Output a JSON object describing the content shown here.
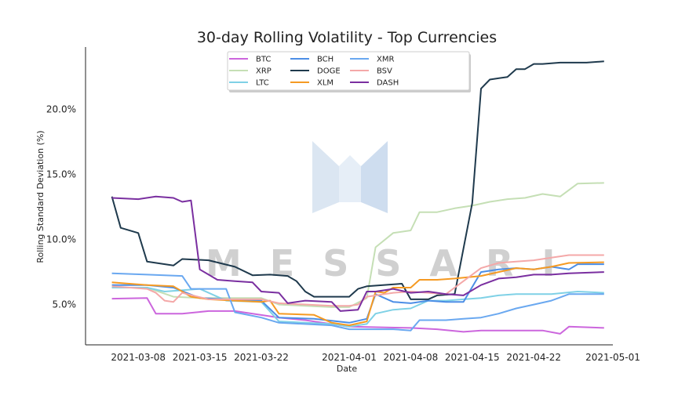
{
  "watermark_text": "MESSARI",
  "chart_data": {
    "type": "line",
    "title": "30-day Rolling Volatility - Top Currencies",
    "xlabel": "Date",
    "ylabel": "Rolling Standard Deviation (%)",
    "xlim": [
      "2021-03-02",
      "2021-05-01"
    ],
    "ylim": [
      1.9,
      24.8
    ],
    "x_ticks": [
      "2021-03-08",
      "2021-03-15",
      "2021-03-22",
      "2021-04-01",
      "2021-04-08",
      "2021-04-15",
      "2021-04-22",
      "2021-05-01"
    ],
    "y_ticks": [
      5.0,
      10.0,
      15.0,
      20.0
    ],
    "y_tick_labels": [
      "5.0%",
      "10.0%",
      "15.0%",
      "20.0%"
    ],
    "grid": false,
    "legend_position": "top-center",
    "series": [
      {
        "name": "BTC",
        "color": "#cc66dd",
        "points": [
          [
            "2021-03-05",
            5.45
          ],
          [
            "2021-03-09",
            5.5
          ],
          [
            "2021-03-10",
            4.3
          ],
          [
            "2021-03-13",
            4.3
          ],
          [
            "2021-03-16",
            4.5
          ],
          [
            "2021-03-19",
            4.5
          ],
          [
            "2021-03-24",
            4.0
          ],
          [
            "2021-03-27",
            3.8
          ],
          [
            "2021-04-01",
            3.3
          ],
          [
            "2021-04-08",
            3.2
          ],
          [
            "2021-04-11",
            3.1
          ],
          [
            "2021-04-14",
            2.9
          ],
          [
            "2021-04-16",
            3.0
          ],
          [
            "2021-04-20",
            3.0
          ],
          [
            "2021-04-23",
            3.0
          ],
          [
            "2021-04-25",
            2.75
          ],
          [
            "2021-04-26",
            3.3
          ],
          [
            "2021-04-30",
            3.2
          ]
        ]
      },
      {
        "name": "XRP",
        "color": "#c5dfb5",
        "points": [
          [
            "2021-03-05",
            6.3
          ],
          [
            "2021-03-09",
            6.3
          ],
          [
            "2021-03-12",
            5.6
          ],
          [
            "2021-03-15",
            5.5
          ],
          [
            "2021-03-18",
            5.5
          ],
          [
            "2021-03-22",
            5.5
          ],
          [
            "2021-03-24",
            5.0
          ],
          [
            "2021-03-30",
            4.8
          ],
          [
            "2021-04-01",
            4.8
          ],
          [
            "2021-04-03",
            5.5
          ],
          [
            "2021-04-04",
            9.4
          ],
          [
            "2021-04-06",
            10.5
          ],
          [
            "2021-04-08",
            10.7
          ],
          [
            "2021-04-09",
            12.1
          ],
          [
            "2021-04-11",
            12.1
          ],
          [
            "2021-04-13",
            12.4
          ],
          [
            "2021-04-15",
            12.6
          ],
          [
            "2021-04-17",
            12.9
          ],
          [
            "2021-04-19",
            13.1
          ],
          [
            "2021-04-21",
            13.2
          ],
          [
            "2021-04-23",
            13.5
          ],
          [
            "2021-04-25",
            13.3
          ],
          [
            "2021-04-27",
            14.3
          ],
          [
            "2021-04-30",
            14.35
          ]
        ]
      },
      {
        "name": "LTC",
        "color": "#7fd1e6",
        "points": [
          [
            "2021-03-05",
            6.3
          ],
          [
            "2021-03-09",
            6.3
          ],
          [
            "2021-03-11",
            6.0
          ],
          [
            "2021-03-15",
            6.2
          ],
          [
            "2021-03-18",
            5.3
          ],
          [
            "2021-03-22",
            5.2
          ],
          [
            "2021-03-24",
            3.7
          ],
          [
            "2021-03-30",
            3.5
          ],
          [
            "2021-04-01",
            3.3
          ],
          [
            "2021-04-03",
            3.5
          ],
          [
            "2021-04-04",
            4.3
          ],
          [
            "2021-04-06",
            4.6
          ],
          [
            "2021-04-08",
            4.7
          ],
          [
            "2021-04-10",
            5.3
          ],
          [
            "2021-04-12",
            5.3
          ],
          [
            "2021-04-14",
            5.4
          ],
          [
            "2021-04-16",
            5.5
          ],
          [
            "2021-04-18",
            5.7
          ],
          [
            "2021-04-20",
            5.8
          ],
          [
            "2021-04-22",
            5.8
          ],
          [
            "2021-04-24",
            5.8
          ],
          [
            "2021-04-27",
            6.0
          ],
          [
            "2021-04-30",
            5.9
          ]
        ]
      },
      {
        "name": "BCH",
        "color": "#4c8ee6",
        "points": [
          [
            "2021-03-05",
            6.5
          ],
          [
            "2021-03-09",
            6.5
          ],
          [
            "2021-03-12",
            6.3
          ],
          [
            "2021-03-15",
            5.5
          ],
          [
            "2021-03-18",
            5.4
          ],
          [
            "2021-03-22",
            5.3
          ],
          [
            "2021-03-24",
            4.0
          ],
          [
            "2021-03-28",
            3.9
          ],
          [
            "2021-04-01",
            3.6
          ],
          [
            "2021-04-03",
            3.9
          ],
          [
            "2021-04-04",
            5.8
          ],
          [
            "2021-04-06",
            5.2
          ],
          [
            "2021-04-08",
            5.1
          ],
          [
            "2021-04-10",
            5.3
          ],
          [
            "2021-04-12",
            5.2
          ],
          [
            "2021-04-14",
            5.2
          ],
          [
            "2021-04-16",
            7.5
          ],
          [
            "2021-04-18",
            7.7
          ],
          [
            "2021-04-20",
            7.8
          ],
          [
            "2021-04-22",
            7.7
          ],
          [
            "2021-04-24",
            7.9
          ],
          [
            "2021-04-26",
            7.7
          ],
          [
            "2021-04-27",
            8.1
          ],
          [
            "2021-04-30",
            8.1
          ]
        ]
      },
      {
        "name": "DOGE",
        "color": "#1f3a4d",
        "points": [
          [
            "2021-03-05",
            13.3
          ],
          [
            "2021-03-06",
            10.9
          ],
          [
            "2021-03-08",
            10.5
          ],
          [
            "2021-03-09",
            8.3
          ],
          [
            "2021-03-12",
            8.0
          ],
          [
            "2021-03-13",
            8.5
          ],
          [
            "2021-03-16",
            8.4
          ],
          [
            "2021-03-19",
            7.9
          ],
          [
            "2021-03-21",
            7.25
          ],
          [
            "2021-03-23",
            7.3
          ],
          [
            "2021-03-25",
            7.2
          ],
          [
            "2021-03-26",
            6.8
          ],
          [
            "2021-03-27",
            6.0
          ],
          [
            "2021-03-28",
            5.6
          ],
          [
            "2021-03-30",
            5.6
          ],
          [
            "2021-04-01",
            5.6
          ],
          [
            "2021-04-02",
            6.2
          ],
          [
            "2021-04-03",
            6.4
          ],
          [
            "2021-04-07",
            6.6
          ],
          [
            "2021-04-08",
            5.4
          ],
          [
            "2021-04-10",
            5.4
          ],
          [
            "2021-04-11",
            5.7
          ],
          [
            "2021-04-13",
            5.8
          ],
          [
            "2021-04-15",
            12.8
          ],
          [
            "2021-04-16",
            21.6
          ],
          [
            "2021-04-17",
            22.3
          ],
          [
            "2021-04-19",
            22.5
          ],
          [
            "2021-04-20",
            23.1
          ],
          [
            "2021-04-21",
            23.1
          ],
          [
            "2021-04-22",
            23.5
          ],
          [
            "2021-04-23",
            23.5
          ],
          [
            "2021-04-25",
            23.6
          ],
          [
            "2021-04-28",
            23.6
          ],
          [
            "2021-04-30",
            23.7
          ]
        ]
      },
      {
        "name": "XLM",
        "color": "#f59a23",
        "points": [
          [
            "2021-03-05",
            6.7
          ],
          [
            "2021-03-09",
            6.5
          ],
          [
            "2021-03-12",
            6.4
          ],
          [
            "2021-03-14",
            5.6
          ],
          [
            "2021-03-16",
            5.4
          ],
          [
            "2021-03-19",
            5.3
          ],
          [
            "2021-03-22",
            5.2
          ],
          [
            "2021-03-23",
            5.3
          ],
          [
            "2021-03-24",
            4.3
          ],
          [
            "2021-03-28",
            4.2
          ],
          [
            "2021-03-30",
            3.6
          ],
          [
            "2021-04-01",
            3.4
          ],
          [
            "2021-04-03",
            3.7
          ],
          [
            "2021-04-04",
            6.0
          ],
          [
            "2021-04-05",
            5.9
          ],
          [
            "2021-04-06",
            6.3
          ],
          [
            "2021-04-08",
            6.3
          ],
          [
            "2021-04-09",
            6.9
          ],
          [
            "2021-04-11",
            6.9
          ],
          [
            "2021-04-13",
            7.0
          ],
          [
            "2021-04-16",
            7.2
          ],
          [
            "2021-04-18",
            7.5
          ],
          [
            "2021-04-20",
            7.8
          ],
          [
            "2021-04-22",
            7.7
          ],
          [
            "2021-04-24",
            7.9
          ],
          [
            "2021-04-26",
            8.2
          ],
          [
            "2021-04-30",
            8.25
          ]
        ]
      },
      {
        "name": "XMR",
        "color": "#6aa8f0",
        "points": [
          [
            "2021-03-05",
            7.4
          ],
          [
            "2021-03-09",
            7.3
          ],
          [
            "2021-03-13",
            7.2
          ],
          [
            "2021-03-14",
            6.2
          ],
          [
            "2021-03-18",
            6.2
          ],
          [
            "2021-03-19",
            4.4
          ],
          [
            "2021-03-22",
            4.0
          ],
          [
            "2021-03-24",
            3.6
          ],
          [
            "2021-03-30",
            3.4
          ],
          [
            "2021-04-01",
            3.1
          ],
          [
            "2021-04-06",
            3.1
          ],
          [
            "2021-04-08",
            3.0
          ],
          [
            "2021-04-09",
            3.8
          ],
          [
            "2021-04-12",
            3.8
          ],
          [
            "2021-04-14",
            3.9
          ],
          [
            "2021-04-16",
            4.0
          ],
          [
            "2021-04-18",
            4.3
          ],
          [
            "2021-04-20",
            4.7
          ],
          [
            "2021-04-22",
            5.0
          ],
          [
            "2021-04-24",
            5.3
          ],
          [
            "2021-04-26",
            5.8
          ],
          [
            "2021-04-30",
            5.8
          ]
        ]
      },
      {
        "name": "BSV",
        "color": "#f4a8a8",
        "points": [
          [
            "2021-03-05",
            6.4
          ],
          [
            "2021-03-09",
            6.2
          ],
          [
            "2021-03-10",
            5.9
          ],
          [
            "2021-03-11",
            5.3
          ],
          [
            "2021-03-12",
            5.2
          ],
          [
            "2021-03-13",
            5.9
          ],
          [
            "2021-03-16",
            5.4
          ],
          [
            "2021-03-22",
            5.4
          ],
          [
            "2021-03-24",
            5.1
          ],
          [
            "2021-03-30",
            4.9
          ],
          [
            "2021-04-01",
            4.9
          ],
          [
            "2021-04-02",
            5.0
          ],
          [
            "2021-04-03",
            5.6
          ],
          [
            "2021-04-06",
            5.9
          ],
          [
            "2021-04-08",
            6.0
          ],
          [
            "2021-04-10",
            5.9
          ],
          [
            "2021-04-12",
            5.8
          ],
          [
            "2021-04-14",
            6.8
          ],
          [
            "2021-04-16",
            7.8
          ],
          [
            "2021-04-18",
            8.2
          ],
          [
            "2021-04-20",
            8.3
          ],
          [
            "2021-04-22",
            8.4
          ],
          [
            "2021-04-24",
            8.6
          ],
          [
            "2021-04-26",
            8.8
          ],
          [
            "2021-04-30",
            8.8
          ]
        ]
      },
      {
        "name": "DASH",
        "color": "#7a2fa0",
        "points": [
          [
            "2021-03-05",
            13.2
          ],
          [
            "2021-03-08",
            13.1
          ],
          [
            "2021-03-10",
            13.3
          ],
          [
            "2021-03-12",
            13.2
          ],
          [
            "2021-03-13",
            12.9
          ],
          [
            "2021-03-14",
            13.0
          ],
          [
            "2021-03-15",
            7.7
          ],
          [
            "2021-03-16",
            7.3
          ],
          [
            "2021-03-17",
            6.9
          ],
          [
            "2021-03-19",
            6.8
          ],
          [
            "2021-03-21",
            6.7
          ],
          [
            "2021-03-22",
            6.0
          ],
          [
            "2021-03-24",
            5.9
          ],
          [
            "2021-03-25",
            5.1
          ],
          [
            "2021-03-27",
            5.3
          ],
          [
            "2021-03-30",
            5.2
          ],
          [
            "2021-03-31",
            4.5
          ],
          [
            "2021-04-02",
            4.6
          ],
          [
            "2021-04-03",
            6.0
          ],
          [
            "2021-04-04",
            6.0
          ],
          [
            "2021-04-06",
            6.2
          ],
          [
            "2021-04-08",
            5.9
          ],
          [
            "2021-04-10",
            6.0
          ],
          [
            "2021-04-12",
            5.8
          ],
          [
            "2021-04-14",
            5.7
          ],
          [
            "2021-04-16",
            6.5
          ],
          [
            "2021-04-18",
            7.0
          ],
          [
            "2021-04-20",
            7.1
          ],
          [
            "2021-04-22",
            7.3
          ],
          [
            "2021-04-24",
            7.3
          ],
          [
            "2021-04-26",
            7.4
          ],
          [
            "2021-04-30",
            7.5
          ]
        ]
      }
    ]
  }
}
